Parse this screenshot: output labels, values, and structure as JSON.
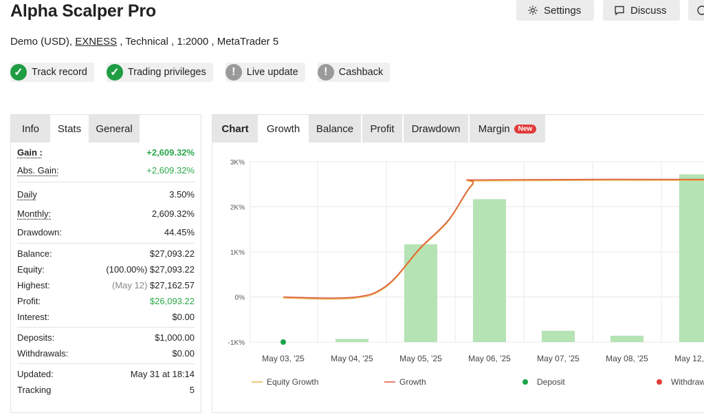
{
  "header": {
    "title": "Alpha Scalper Pro",
    "settings_label": "Settings",
    "discuss_label": "Discuss",
    "subtitle_prefix": "Demo (USD), ",
    "broker": "EXNESS",
    "subtitle_suffix": " , Technical , 1:2000 , MetaTrader 5"
  },
  "badges": [
    {
      "label": "Track record",
      "status": "verified",
      "icon": "check-icon"
    },
    {
      "label": "Trading privileges",
      "status": "verified",
      "icon": "check-icon"
    },
    {
      "label": "Live update",
      "status": "unverified",
      "icon": "exclamation-icon"
    },
    {
      "label": "Cashback",
      "status": "unverified",
      "icon": "exclamation-icon"
    }
  ],
  "left_tabs": {
    "info": "Info",
    "stats": "Stats",
    "general": "General"
  },
  "stats": {
    "gain_label": "Gain :",
    "gain_value": "+2,609.32%",
    "abs_gain_label": "Abs. Gain:",
    "abs_gain_value": "+2,609.32%",
    "daily_label": "Daily",
    "daily_value": "3.50%",
    "monthly_label": "Monthly:",
    "monthly_value": "2,609.32%",
    "drawdown_label": "Drawdown:",
    "drawdown_value": "44.45%",
    "balance_label": "Balance:",
    "balance_value": "$27,093.22",
    "equity_label": "Equity:",
    "equity_pct": "(100.00%)",
    "equity_value": "$27,093.22",
    "highest_label": "Highest:",
    "highest_date": "(May 12)",
    "highest_value": "$27,162.57",
    "profit_label": "Profit:",
    "profit_value": "$26,093.22",
    "interest_label": "Interest:",
    "interest_value": "$0.00",
    "deposits_label": "Deposits:",
    "deposits_value": "$1,000.00",
    "withdrawals_label": "Withdrawals:",
    "withdrawals_value": "$0.00",
    "updated_label": "Updated:",
    "updated_value": "May 31 at 18:14",
    "tracking_label": "Tracking",
    "tracking_value": "5"
  },
  "right_tabs": {
    "chart": "Chart",
    "growth": "Growth",
    "balance": "Balance",
    "profit": "Profit",
    "drawdown": "Drawdown",
    "margin": "Margin",
    "new_tag": "New"
  },
  "colors": {
    "green": "#2aa84a",
    "bar": "#b5e3b4",
    "growth_line": "#e0553d",
    "equity_line": "#e6b54a",
    "deposit_dot": "#1aa34a",
    "withdraw_dot": "#e23b3b"
  },
  "chart_data": {
    "type": "bar",
    "categories": [
      "May 03, '25",
      "May 04, '25",
      "May 05, '25",
      "May 06, '25",
      "May 07, '25",
      "May 08, '25",
      "May 12, '25"
    ],
    "ylim": [
      -1000,
      3000
    ],
    "y_ticks": [
      -1000,
      0,
      1000,
      2000,
      3000
    ],
    "y_tick_labels": [
      "-1K%",
      "0%",
      "1K%",
      "2K%",
      "3K%"
    ],
    "bars": [
      null,
      -930,
      1170,
      2170,
      -750,
      -860,
      2720
    ],
    "growth_line": [
      {
        "x": 0,
        "y": 0
      },
      {
        "x": 1,
        "y": -10
      },
      {
        "x": 1.5,
        "y": 250
      },
      {
        "x": 2,
        "y": 1100
      },
      {
        "x": 2.4,
        "y": 1700
      },
      {
        "x": 2.75,
        "y": 2500
      },
      {
        "x": 3,
        "y": 2600
      },
      {
        "x": 6.5,
        "y": 2609
      }
    ],
    "deposit_points": [
      {
        "x": 0,
        "y": -1000
      }
    ],
    "legend": [
      "Equity Growth",
      "Growth",
      "Deposit",
      "Withdrawal"
    ]
  }
}
